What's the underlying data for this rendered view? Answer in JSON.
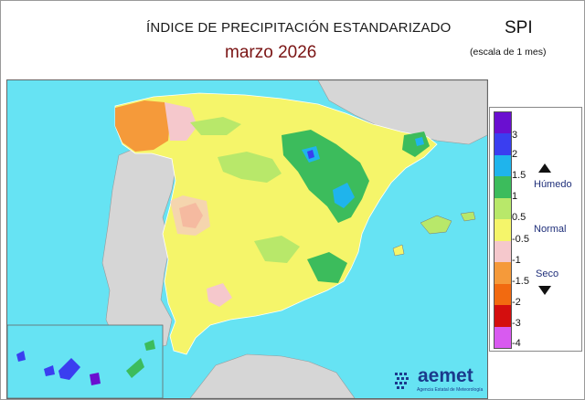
{
  "header": {
    "title": "ÍNDICE DE PRECIPITACIÓN ESTANDARIZADO",
    "subtitle": "marzo  2026",
    "index_name": "SPI",
    "scale_note": "(escala de 1 mes)"
  },
  "legend": {
    "labels": [
      "3",
      "2",
      "1.5",
      "1",
      "0.5",
      "-0.5",
      "-1",
      "-1.5",
      "-2",
      "-3",
      "-4"
    ],
    "colors": [
      "#6a0fd0",
      "#3a3ef0",
      "#1fb4ec",
      "#3cbc5c",
      "#b8e86a",
      "#f5f56a",
      "#f5c8cc",
      "#f59a3a",
      "#f26a10",
      "#d40e0e",
      "#d85af0"
    ],
    "wet_label": "Húmedo",
    "normal_label": "Normal",
    "dry_label": "Seco"
  },
  "logo": {
    "name": "aemet",
    "subtitle": "Agencia Estatal de Meteorología"
  },
  "colors": {
    "sea": "#66e3f3",
    "neighbor_land": "#d6d6d6",
    "title_accent": "#7a1414"
  }
}
